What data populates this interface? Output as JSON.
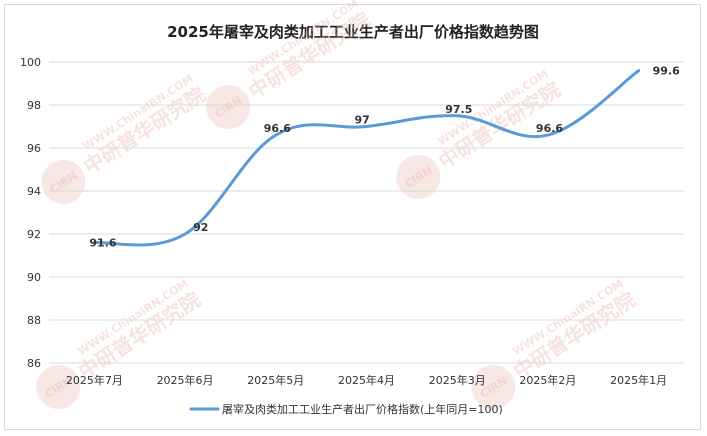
{
  "chart_data": {
    "type": "line",
    "title": "2025年屠宰及肉类加工工业生产者出厂价格指数趋势图",
    "categories": [
      "2025年7月",
      "2025年6月",
      "2025年5月",
      "2025年4月",
      "2025年3月",
      "2025年2月",
      "2025年1月"
    ],
    "series": [
      {
        "name": "屠宰及肉类加工工业生产者出厂价格指数(上年同月=100)",
        "values": [
          91.6,
          92,
          96.6,
          97,
          97.5,
          96.6,
          99.6
        ],
        "color": "#5b9bd5"
      }
    ],
    "data_labels": [
      "91.6",
      "92",
      "96.6",
      "97",
      "97.5",
      "96.6",
      "99.6"
    ],
    "ylim": [
      86,
      100
    ],
    "yticks": [
      "86",
      "88",
      "90",
      "92",
      "94",
      "96",
      "98",
      "100"
    ],
    "grid": true,
    "smooth": true,
    "legend": "bottom"
  },
  "watermark": {
    "text_cn": "中研普华研究院",
    "text_en": "WWW.ChinaIRN.COM",
    "logo": "CIRN",
    "color": "#e6b0a8"
  }
}
